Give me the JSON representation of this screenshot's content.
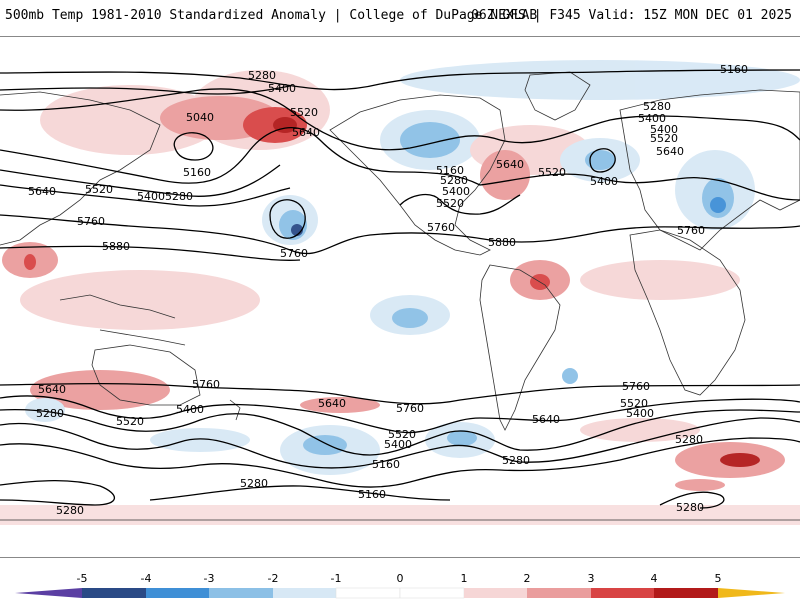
{
  "header": {
    "title_left": "500mb Temp 1981-2010 Standardized Anomaly | College of DuPage NEXLAB",
    "title_right": "06Z GFS | F345 Valid: 15Z MON DEC 01 2025"
  },
  "colors": {
    "ocean": "#ffffff",
    "coast": "#333333",
    "contour": "#000000",
    "neg5": "#5b3fa3",
    "neg4": "#2a4a86",
    "neg3": "#3f8fd6",
    "neg2": "#8cc0e6",
    "neg1": "#d7e8f5",
    "pos1": "#f6d6d6",
    "pos2": "#ea9d9d",
    "pos3": "#d84444",
    "pos4": "#b21a1a",
    "pos5": "#f0b81a"
  },
  "colorbar": {
    "labels": [
      "-5",
      "-4",
      "-3",
      "-2",
      "-1",
      "0",
      "1",
      "2",
      "3",
      "4",
      "5"
    ]
  },
  "contour_labels": [
    "5280",
    "5400",
    "5520",
    "5040",
    "5640",
    "5160",
    "5280",
    "5400",
    "5640",
    "5520",
    "5760",
    "5880",
    "5760",
    "5160",
    "5280",
    "5400",
    "5520",
    "5640",
    "5520",
    "5400",
    "5760",
    "5880",
    "5160",
    "5280",
    "5400",
    "5520",
    "5640",
    "5400",
    "5760",
    "5640",
    "5280",
    "5520",
    "5400",
    "5760",
    "5640",
    "5760",
    "5520",
    "5400",
    "5160",
    "5280",
    "5160",
    "5640",
    "5520",
    "5400",
    "5760",
    "5280",
    "5280",
    "5280",
    "5280"
  ]
}
